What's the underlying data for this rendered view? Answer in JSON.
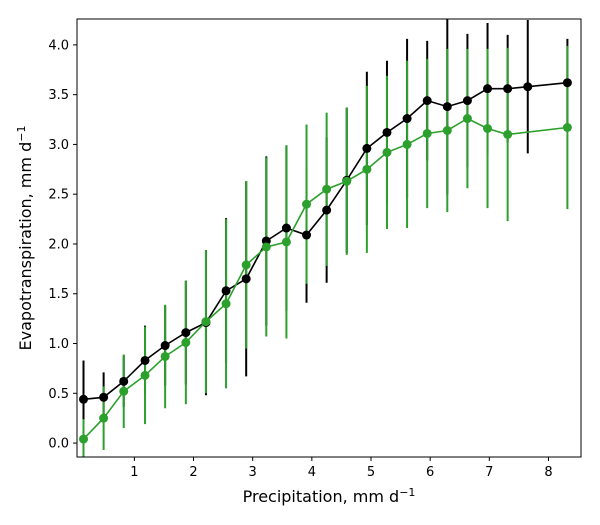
{
  "chart_data": {
    "type": "line",
    "xlabel": "Precipitation,  mm d",
    "xlabel_sup": "−1",
    "ylabel": "Evapotranspiration,  mm d",
    "ylabel_sup": "−1",
    "xlim": [
      0.03,
      8.55
    ],
    "ylim": [
      -0.14,
      4.26
    ],
    "xticks": [
      1,
      2,
      3,
      4,
      5,
      6,
      7,
      8
    ],
    "yticks": [
      0.0,
      0.5,
      1.0,
      1.5,
      2.0,
      2.5,
      3.0,
      3.5,
      4.0
    ],
    "xtick_labels": [
      "1",
      "2",
      "3",
      "4",
      "5",
      "6",
      "7",
      "8"
    ],
    "ytick_labels": [
      "0.0",
      "0.5",
      "1.0",
      "1.5",
      "2.0",
      "2.5",
      "3.0",
      "3.5",
      "4.0"
    ],
    "grid": false,
    "series": [
      {
        "color": "#000000",
        "x": [
          0.14,
          0.48,
          0.82,
          1.18,
          1.52,
          1.87,
          2.21,
          2.55,
          2.89,
          3.23,
          3.57,
          3.91,
          4.25,
          4.59,
          4.93,
          5.27,
          5.61,
          5.95,
          6.29,
          6.63,
          6.97,
          7.31,
          7.65,
          8.32
        ],
        "y": [
          0.44,
          0.46,
          0.62,
          0.83,
          0.98,
          1.11,
          1.21,
          1.53,
          1.65,
          2.03,
          2.16,
          2.09,
          2.34,
          2.64,
          2.96,
          3.12,
          3.26,
          3.44,
          3.38,
          3.44,
          3.56,
          3.56,
          3.58,
          3.62
        ],
        "err": [
          0.39,
          0.25,
          0.26,
          0.35,
          0.4,
          0.52,
          0.73,
          0.73,
          0.98,
          0.85,
          0.83,
          0.68,
          0.73,
          0.73,
          0.77,
          0.72,
          0.8,
          0.6,
          0.88,
          0.67,
          0.66,
          0.54,
          0.67,
          0.44
        ]
      },
      {
        "color": "#2ca02c",
        "x": [
          0.14,
          0.48,
          0.82,
          1.18,
          1.52,
          1.87,
          2.21,
          2.55,
          2.89,
          3.23,
          3.57,
          3.91,
          4.25,
          4.59,
          4.93,
          5.27,
          5.61,
          5.95,
          6.29,
          6.63,
          6.97,
          7.31,
          8.32
        ],
        "y": [
          0.04,
          0.25,
          0.52,
          0.68,
          0.87,
          1.01,
          1.22,
          1.4,
          1.79,
          1.97,
          2.02,
          2.4,
          2.55,
          2.63,
          2.75,
          2.92,
          3.0,
          3.11,
          3.14,
          3.26,
          3.16,
          3.1,
          3.17
        ],
        "err": [
          0.2,
          0.32,
          0.37,
          0.49,
          0.52,
          0.62,
          0.72,
          0.85,
          0.84,
          0.9,
          0.97,
          0.8,
          0.77,
          0.74,
          0.84,
          0.77,
          0.84,
          0.75,
          0.82,
          0.7,
          0.8,
          0.87,
          0.82
        ]
      }
    ]
  }
}
